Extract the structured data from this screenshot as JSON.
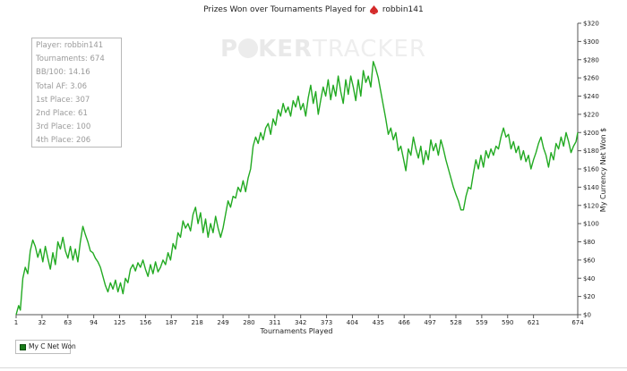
{
  "header": {
    "title": "Prizes Won over Tournaments Played for",
    "player": "robbin141"
  },
  "watermark": {
    "part1": "P",
    "part2": "KER",
    "part3": "TRACKER"
  },
  "stats": {
    "player": "Player: robbin141",
    "tournaments": "Tournaments: 674",
    "bb100": "BB/100: 14.16",
    "total_af": "Total AF: 3.06",
    "first": "1st Place: 307",
    "second": "2nd Place: 61",
    "third": "3rd Place: 100",
    "fourth": "4th Place: 206"
  },
  "legend": {
    "label": "My C Net Won"
  },
  "colors": {
    "line": "#22aa22",
    "legend_swatch": "#1a7d1a"
  },
  "chart_data": {
    "type": "line",
    "title": "Prizes Won over Tournaments Played for robbin141",
    "xlabel": "Tournaments Played",
    "ylabel": "My Currency Net Won $",
    "xlim": [
      1,
      674
    ],
    "ylim": [
      0,
      320
    ],
    "x_ticks": [
      1,
      32,
      63,
      94,
      125,
      156,
      187,
      218,
      249,
      280,
      311,
      342,
      373,
      404,
      435,
      466,
      497,
      528,
      559,
      590,
      621,
      674
    ],
    "y_ticks": [
      0,
      20,
      40,
      60,
      80,
      100,
      120,
      140,
      160,
      180,
      200,
      220,
      240,
      260,
      280,
      300,
      320
    ],
    "y_tick_labels": [
      "$0",
      "$20",
      "$40",
      "$60",
      "$80",
      "$100",
      "$120",
      "$140",
      "$160",
      "$180",
      "$200",
      "$220",
      "$240",
      "$260",
      "$280",
      "$300",
      "$320"
    ],
    "grid": false,
    "legend_position": "bottom-left",
    "series": [
      {
        "name": "My C Net Won",
        "points": [
          [
            1,
            0
          ],
          [
            4,
            10
          ],
          [
            6,
            5
          ],
          [
            9,
            40
          ],
          [
            12,
            52
          ],
          [
            15,
            45
          ],
          [
            18,
            70
          ],
          [
            21,
            82
          ],
          [
            24,
            75
          ],
          [
            27,
            63
          ],
          [
            30,
            72
          ],
          [
            33,
            58
          ],
          [
            36,
            75
          ],
          [
            39,
            62
          ],
          [
            42,
            50
          ],
          [
            45,
            68
          ],
          [
            48,
            55
          ],
          [
            51,
            80
          ],
          [
            54,
            72
          ],
          [
            57,
            85
          ],
          [
            60,
            70
          ],
          [
            63,
            62
          ],
          [
            66,
            75
          ],
          [
            69,
            60
          ],
          [
            72,
            72
          ],
          [
            75,
            58
          ],
          [
            78,
            80
          ],
          [
            81,
            97
          ],
          [
            84,
            88
          ],
          [
            87,
            80
          ],
          [
            90,
            70
          ],
          [
            93,
            68
          ],
          [
            96,
            62
          ],
          [
            99,
            58
          ],
          [
            102,
            52
          ],
          [
            105,
            42
          ],
          [
            108,
            32
          ],
          [
            111,
            25
          ],
          [
            114,
            35
          ],
          [
            117,
            28
          ],
          [
            120,
            38
          ],
          [
            123,
            25
          ],
          [
            126,
            35
          ],
          [
            129,
            23
          ],
          [
            132,
            40
          ],
          [
            135,
            35
          ],
          [
            138,
            50
          ],
          [
            141,
            55
          ],
          [
            144,
            48
          ],
          [
            147,
            57
          ],
          [
            150,
            52
          ],
          [
            153,
            60
          ],
          [
            156,
            50
          ],
          [
            159,
            42
          ],
          [
            162,
            55
          ],
          [
            165,
            45
          ],
          [
            168,
            58
          ],
          [
            171,
            47
          ],
          [
            174,
            52
          ],
          [
            177,
            60
          ],
          [
            180,
            55
          ],
          [
            183,
            68
          ],
          [
            186,
            60
          ],
          [
            189,
            78
          ],
          [
            192,
            72
          ],
          [
            195,
            90
          ],
          [
            198,
            85
          ],
          [
            201,
            103
          ],
          [
            204,
            95
          ],
          [
            207,
            100
          ],
          [
            210,
            92
          ],
          [
            213,
            110
          ],
          [
            216,
            118
          ],
          [
            219,
            100
          ],
          [
            222,
            112
          ],
          [
            225,
            90
          ],
          [
            228,
            105
          ],
          [
            231,
            85
          ],
          [
            234,
            100
          ],
          [
            237,
            90
          ],
          [
            240,
            108
          ],
          [
            243,
            95
          ],
          [
            246,
            85
          ],
          [
            249,
            95
          ],
          [
            252,
            110
          ],
          [
            255,
            125
          ],
          [
            258,
            118
          ],
          [
            261,
            130
          ],
          [
            264,
            128
          ],
          [
            267,
            140
          ],
          [
            270,
            135
          ],
          [
            273,
            147
          ],
          [
            276,
            135
          ],
          [
            279,
            150
          ],
          [
            282,
            160
          ],
          [
            285,
            185
          ],
          [
            288,
            195
          ],
          [
            291,
            188
          ],
          [
            294,
            200
          ],
          [
            297,
            192
          ],
          [
            300,
            205
          ],
          [
            303,
            210
          ],
          [
            306,
            198
          ],
          [
            309,
            215
          ],
          [
            312,
            208
          ],
          [
            315,
            225
          ],
          [
            318,
            218
          ],
          [
            321,
            232
          ],
          [
            324,
            222
          ],
          [
            327,
            228
          ],
          [
            330,
            218
          ],
          [
            333,
            235
          ],
          [
            336,
            228
          ],
          [
            339,
            240
          ],
          [
            342,
            225
          ],
          [
            345,
            232
          ],
          [
            348,
            218
          ],
          [
            351,
            238
          ],
          [
            354,
            252
          ],
          [
            357,
            232
          ],
          [
            360,
            245
          ],
          [
            363,
            220
          ],
          [
            366,
            236
          ],
          [
            369,
            250
          ],
          [
            372,
            240
          ],
          [
            375,
            258
          ],
          [
            378,
            236
          ],
          [
            381,
            252
          ],
          [
            384,
            240
          ],
          [
            387,
            262
          ],
          [
            390,
            245
          ],
          [
            393,
            232
          ],
          [
            396,
            258
          ],
          [
            399,
            242
          ],
          [
            402,
            262
          ],
          [
            405,
            250
          ],
          [
            408,
            235
          ],
          [
            411,
            258
          ],
          [
            414,
            240
          ],
          [
            417,
            268
          ],
          [
            420,
            255
          ],
          [
            423,
            262
          ],
          [
            426,
            250
          ],
          [
            429,
            278
          ],
          [
            432,
            270
          ],
          [
            435,
            260
          ],
          [
            438,
            245
          ],
          [
            441,
            230
          ],
          [
            444,
            215
          ],
          [
            447,
            198
          ],
          [
            450,
            205
          ],
          [
            453,
            192
          ],
          [
            456,
            200
          ],
          [
            459,
            180
          ],
          [
            462,
            185
          ],
          [
            465,
            172
          ],
          [
            468,
            158
          ],
          [
            471,
            182
          ],
          [
            474,
            175
          ],
          [
            477,
            195
          ],
          [
            480,
            182
          ],
          [
            483,
            172
          ],
          [
            486,
            185
          ],
          [
            489,
            165
          ],
          [
            492,
            180
          ],
          [
            495,
            170
          ],
          [
            498,
            192
          ],
          [
            501,
            180
          ],
          [
            504,
            188
          ],
          [
            507,
            175
          ],
          [
            510,
            192
          ],
          [
            513,
            182
          ],
          [
            516,
            170
          ],
          [
            519,
            160
          ],
          [
            522,
            150
          ],
          [
            525,
            140
          ],
          [
            528,
            132
          ],
          [
            531,
            125
          ],
          [
            534,
            115
          ],
          [
            537,
            115
          ],
          [
            540,
            130
          ],
          [
            543,
            140
          ],
          [
            546,
            138
          ],
          [
            549,
            155
          ],
          [
            552,
            170
          ],
          [
            555,
            160
          ],
          [
            558,
            175
          ],
          [
            561,
            162
          ],
          [
            564,
            180
          ],
          [
            567,
            172
          ],
          [
            570,
            182
          ],
          [
            573,
            175
          ],
          [
            576,
            185
          ],
          [
            579,
            182
          ],
          [
            582,
            195
          ],
          [
            585,
            205
          ],
          [
            588,
            195
          ],
          [
            591,
            198
          ],
          [
            594,
            182
          ],
          [
            597,
            190
          ],
          [
            600,
            178
          ],
          [
            603,
            185
          ],
          [
            606,
            170
          ],
          [
            609,
            180
          ],
          [
            612,
            168
          ],
          [
            615,
            175
          ],
          [
            618,
            160
          ],
          [
            621,
            170
          ],
          [
            624,
            178
          ],
          [
            627,
            188
          ],
          [
            630,
            195
          ],
          [
            633,
            183
          ],
          [
            636,
            175
          ],
          [
            639,
            162
          ],
          [
            642,
            178
          ],
          [
            645,
            170
          ],
          [
            648,
            188
          ],
          [
            651,
            182
          ],
          [
            654,
            195
          ],
          [
            657,
            185
          ],
          [
            660,
            200
          ],
          [
            663,
            190
          ],
          [
            666,
            178
          ],
          [
            669,
            185
          ],
          [
            672,
            190
          ],
          [
            674,
            200
          ]
        ]
      }
    ]
  }
}
